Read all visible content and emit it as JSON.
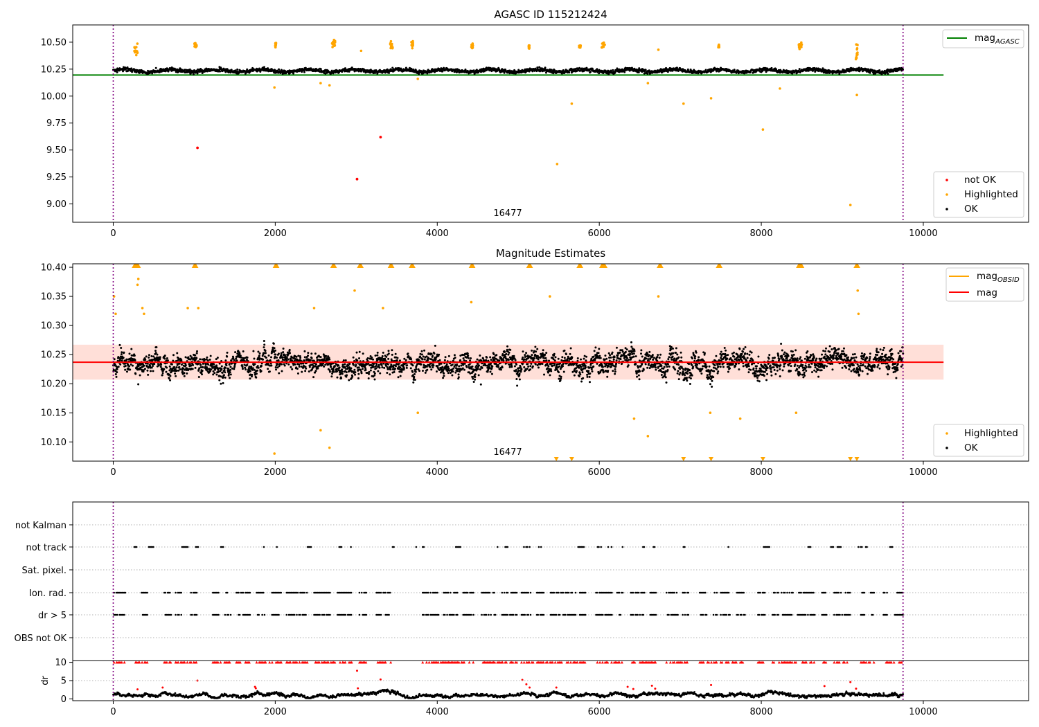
{
  "chart_data": [
    {
      "type": "scatter",
      "title": "AGASC ID 115212424",
      "xlabel": "",
      "ylabel": "",
      "xlim": [
        -500,
        11300
      ],
      "ylim": [
        8.83,
        10.66
      ],
      "xticks": [
        "0",
        "2000",
        "4000",
        "6000",
        "8000",
        "10000"
      ],
      "yticks": [
        "9.00",
        "9.25",
        "9.50",
        "9.75",
        "10.00",
        "10.25",
        "10.50"
      ],
      "vlines": [
        0,
        9750
      ],
      "annotation": {
        "text": "16477",
        "x": 4800,
        "y": 8.88
      },
      "ok_band": {
        "center": 10.235,
        "spread": 0.03
      },
      "reference_line": {
        "name": "mag_AGASC",
        "value": 10.195,
        "x_range": [
          -500,
          10250
        ],
        "color": "#008000"
      },
      "legend_lines": [
        {
          "name": "mag",
          "subscript": "AGASC",
          "color": "#008000"
        }
      ],
      "legend_markers": [
        {
          "name": "not OK",
          "color": "#ff0000"
        },
        {
          "name": "Highlighted",
          "color": "#ffa500"
        },
        {
          "name": "OK",
          "color": "#000000"
        }
      ],
      "highlighted_clusters": [
        {
          "x": [
            260,
            300
          ],
          "y": [
            10.38,
            10.49
          ]
        },
        {
          "x": [
            1000,
            1030
          ],
          "y": [
            10.45,
            10.5
          ]
        },
        {
          "x": [
            2000,
            2010
          ],
          "y": [
            10.45,
            10.5
          ]
        },
        {
          "x": [
            2700,
            2740
          ],
          "y": [
            10.44,
            10.53
          ]
        },
        {
          "x": [
            3420,
            3450
          ],
          "y": [
            10.44,
            10.51
          ]
        },
        {
          "x": [
            3680,
            3700
          ],
          "y": [
            10.44,
            10.51
          ]
        },
        {
          "x": [
            4420,
            4440
          ],
          "y": [
            10.44,
            10.49
          ]
        },
        {
          "x": [
            5130,
            5140
          ],
          "y": [
            10.44,
            10.47
          ]
        },
        {
          "x": [
            5750,
            5770
          ],
          "y": [
            10.45,
            10.47
          ]
        },
        {
          "x": [
            6030,
            6070
          ],
          "y": [
            10.44,
            10.5
          ]
        },
        {
          "x": [
            7470,
            7480
          ],
          "y": [
            10.45,
            10.48
          ]
        },
        {
          "x": [
            8460,
            8500
          ],
          "y": [
            10.43,
            10.5
          ]
        },
        {
          "x": [
            9160,
            9190
          ],
          "y": [
            10.33,
            10.49
          ]
        }
      ],
      "highlighted_points": [
        {
          "x": 1990,
          "y": 10.08
        },
        {
          "x": 2560,
          "y": 10.12
        },
        {
          "x": 2670,
          "y": 10.1
        },
        {
          "x": 3060,
          "y": 10.42
        },
        {
          "x": 3760,
          "y": 10.16
        },
        {
          "x": 5480,
          "y": 9.37
        },
        {
          "x": 5660,
          "y": 9.93
        },
        {
          "x": 6600,
          "y": 10.12
        },
        {
          "x": 6730,
          "y": 10.43
        },
        {
          "x": 7040,
          "y": 9.93
        },
        {
          "x": 7380,
          "y": 9.98
        },
        {
          "x": 8020,
          "y": 9.69
        },
        {
          "x": 8230,
          "y": 10.07
        },
        {
          "x": 9100,
          "y": 8.99
        },
        {
          "x": 9180,
          "y": 10.01
        }
      ],
      "not_ok_points": [
        {
          "x": 1040,
          "y": 9.52
        },
        {
          "x": 3300,
          "y": 9.62
        },
        {
          "x": 3010,
          "y": 9.23
        }
      ]
    },
    {
      "type": "scatter",
      "title": "Magnitude Estimates",
      "xlabel": "",
      "ylabel": "",
      "xlim": [
        -500,
        11300
      ],
      "ylim": [
        10.067,
        10.406
      ],
      "xticks": [
        "0",
        "2000",
        "4000",
        "6000",
        "8000",
        "10000"
      ],
      "yticks": [
        "10.10",
        "10.15",
        "10.20",
        "10.25",
        "10.30",
        "10.35",
        "10.40"
      ],
      "vlines": [
        0,
        9750
      ],
      "annotation": {
        "text": "16477",
        "x": 4800,
        "y": 10.077
      },
      "mag_line": {
        "name": "mag",
        "value": 10.237,
        "x_range": [
          -500,
          10250
        ],
        "color": "#ff0000"
      },
      "mag_band": {
        "low": 10.207,
        "high": 10.267,
        "color": "#ffc4b8"
      },
      "ok_band": {
        "center": 10.235,
        "spread": 0.028
      },
      "legend_lines": [
        {
          "name": "mag",
          "subscript": "OBSID",
          "color": "#ffa500"
        },
        {
          "name": "mag",
          "subscript": "",
          "color": "#ff0000"
        }
      ],
      "legend_markers": [
        {
          "name": "Highlighted",
          "color": "#ffa500"
        },
        {
          "name": "OK",
          "color": "#000000"
        }
      ],
      "clipped_top_x": [
        270,
        300,
        1010,
        2010,
        2720,
        3050,
        3430,
        3690,
        4430,
        5140,
        5760,
        6040,
        6060,
        6750,
        7480,
        8470,
        8490,
        9180
      ],
      "clipped_bottom_x": [
        5470,
        5660,
        7040,
        7380,
        8020,
        9100,
        9180
      ],
      "highlighted_points": [
        {
          "x": 10,
          "y": 10.35
        },
        {
          "x": 30,
          "y": 10.32
        },
        {
          "x": 300,
          "y": 10.37
        },
        {
          "x": 310,
          "y": 10.38
        },
        {
          "x": 360,
          "y": 10.33
        },
        {
          "x": 380,
          "y": 10.32
        },
        {
          "x": 920,
          "y": 10.33
        },
        {
          "x": 1050,
          "y": 10.33
        },
        {
          "x": 1990,
          "y": 10.08
        },
        {
          "x": 2480,
          "y": 10.33
        },
        {
          "x": 2560,
          "y": 10.12
        },
        {
          "x": 2670,
          "y": 10.09
        },
        {
          "x": 2980,
          "y": 10.36
        },
        {
          "x": 3330,
          "y": 10.33
        },
        {
          "x": 3760,
          "y": 10.15
        },
        {
          "x": 4420,
          "y": 10.34
        },
        {
          "x": 5390,
          "y": 10.35
        },
        {
          "x": 6430,
          "y": 10.14
        },
        {
          "x": 6600,
          "y": 10.11
        },
        {
          "x": 6730,
          "y": 10.35
        },
        {
          "x": 7370,
          "y": 10.15
        },
        {
          "x": 7740,
          "y": 10.14
        },
        {
          "x": 8430,
          "y": 10.15
        },
        {
          "x": 9190,
          "y": 10.36
        },
        {
          "x": 9200,
          "y": 10.32
        }
      ]
    },
    {
      "type": "scatter",
      "title": "",
      "xlabel": "",
      "ylabel": "",
      "xlim": [
        -500,
        11300
      ],
      "categories": [
        "OBS not OK",
        "dr > 5",
        "Ion. rad.",
        "Sat. pixel.",
        "not track",
        "not Kalman"
      ],
      "xticks": [],
      "vlines": [
        0,
        9750
      ],
      "flag_runs": {
        "not Kalman": [],
        "Sat. pixel.": [],
        "OBS not OK": [],
        "not track": [
          [
            260,
            300
          ],
          [
            440,
            500
          ],
          [
            850,
            920
          ],
          [
            1020,
            1050
          ],
          [
            1330,
            1360
          ],
          [
            1860,
            1880
          ],
          [
            2020,
            2040
          ],
          [
            2400,
            2450
          ],
          [
            2790,
            2820
          ],
          [
            2920,
            2940
          ],
          [
            3450,
            3480
          ],
          [
            3740,
            3760
          ],
          [
            3820,
            3850
          ],
          [
            4230,
            4290
          ],
          [
            4730,
            4750
          ],
          [
            4840,
            4870
          ],
          [
            5070,
            5150
          ],
          [
            5240,
            5290
          ],
          [
            5740,
            5810
          ],
          [
            5980,
            6040
          ],
          [
            6110,
            6160
          ],
          [
            6260,
            6290
          ],
          [
            6540,
            6560
          ],
          [
            6670,
            6690
          ],
          [
            7040,
            7070
          ],
          [
            7580,
            7600
          ],
          [
            8030,
            8100
          ],
          [
            8580,
            8620
          ],
          [
            8860,
            8890
          ],
          [
            8940,
            8990
          ],
          [
            9200,
            9250
          ],
          [
            9290,
            9310
          ],
          [
            9590,
            9630
          ]
        ],
        "Ion. rad.": [
          [
            10,
            150
          ],
          [
            350,
            420
          ],
          [
            630,
            720
          ],
          [
            770,
            850
          ],
          [
            960,
            1040
          ],
          [
            1230,
            1300
          ],
          [
            1380,
            1450
          ],
          [
            1520,
            1700
          ],
          [
            1770,
            1880
          ],
          [
            1960,
            2080
          ],
          [
            2140,
            2400
          ],
          [
            2480,
            2680
          ],
          [
            2770,
            2950
          ],
          [
            3040,
            3130
          ],
          [
            3250,
            3430
          ],
          [
            3820,
            4020
          ],
          [
            4080,
            4250
          ],
          [
            4320,
            4450
          ],
          [
            4550,
            4720
          ],
          [
            4800,
            4990
          ],
          [
            5040,
            5160
          ],
          [
            5230,
            5320
          ],
          [
            5400,
            5710
          ],
          [
            5760,
            5830
          ],
          [
            5960,
            6160
          ],
          [
            6220,
            6300
          ],
          [
            6390,
            6560
          ],
          [
            6630,
            6700
          ],
          [
            6830,
            6980
          ],
          [
            7030,
            7100
          ],
          [
            7240,
            7330
          ],
          [
            7410,
            7460
          ],
          [
            7500,
            7630
          ],
          [
            7700,
            7800
          ],
          [
            7960,
            8050
          ],
          [
            8140,
            8210
          ],
          [
            8250,
            8390
          ],
          [
            8450,
            8660
          ],
          [
            8750,
            8810
          ],
          [
            8900,
            9100
          ],
          [
            9230,
            9280
          ],
          [
            9350,
            9400
          ],
          [
            9510,
            9560
          ],
          [
            9650,
            9750
          ]
        ],
        "dr > 5": [
          [
            10,
            150
          ],
          [
            350,
            420
          ],
          [
            630,
            720
          ],
          [
            770,
            850
          ],
          [
            960,
            1040
          ],
          [
            1230,
            1300
          ],
          [
            1380,
            1450
          ],
          [
            1520,
            1700
          ],
          [
            1770,
            1880
          ],
          [
            1960,
            2080
          ],
          [
            2140,
            2400
          ],
          [
            2480,
            2680
          ],
          [
            2770,
            2950
          ],
          [
            3040,
            3130
          ],
          [
            3250,
            3430
          ],
          [
            3820,
            4020
          ],
          [
            4080,
            4250
          ],
          [
            4320,
            4450
          ],
          [
            4550,
            4720
          ],
          [
            4800,
            4990
          ],
          [
            5040,
            5160
          ],
          [
            5230,
            5320
          ],
          [
            5400,
            5710
          ],
          [
            5760,
            5830
          ],
          [
            5960,
            6160
          ],
          [
            6220,
            6300
          ],
          [
            6390,
            6560
          ],
          [
            6630,
            6700
          ],
          [
            6830,
            6980
          ],
          [
            7030,
            7100
          ],
          [
            7240,
            7330
          ],
          [
            7410,
            7460
          ],
          [
            7500,
            7630
          ],
          [
            7700,
            7800
          ],
          [
            7960,
            8050
          ],
          [
            8140,
            8210
          ],
          [
            8250,
            8390
          ],
          [
            8450,
            8660
          ],
          [
            8750,
            8810
          ],
          [
            8900,
            9100
          ],
          [
            9230,
            9280
          ],
          [
            9350,
            9400
          ],
          [
            9510,
            9560
          ],
          [
            9650,
            9750
          ]
        ]
      }
    },
    {
      "type": "scatter",
      "title": "",
      "xlabel": "",
      "ylabel": "dr",
      "xlim": [
        -500,
        11300
      ],
      "ylim": [
        -0.5,
        10.5
      ],
      "xticks": [
        "0",
        "2000",
        "4000",
        "6000",
        "8000",
        "10000"
      ],
      "yticks": [
        "0",
        "5",
        "10"
      ],
      "vlines": [
        0,
        9750
      ],
      "clip_value": 10,
      "clipped_runs": [
        [
          10,
          150
        ],
        [
          260,
          420
        ],
        [
          630,
          720
        ],
        [
          770,
          1040
        ],
        [
          1230,
          1450
        ],
        [
          1520,
          1700
        ],
        [
          1770,
          2080
        ],
        [
          2140,
          2400
        ],
        [
          2480,
          2950
        ],
        [
          3040,
          3130
        ],
        [
          3250,
          3430
        ],
        [
          3820,
          4450
        ],
        [
          4550,
          4990
        ],
        [
          5040,
          5830
        ],
        [
          5960,
          6300
        ],
        [
          6390,
          6700
        ],
        [
          6830,
          7100
        ],
        [
          7240,
          7460
        ],
        [
          7500,
          7800
        ],
        [
          7960,
          8050
        ],
        [
          8140,
          8660
        ],
        [
          8750,
          8810
        ],
        [
          8900,
          9100
        ],
        [
          9230,
          9400
        ],
        [
          9510,
          9750
        ]
      ],
      "red_points": [
        {
          "x": 300,
          "y": 2.6
        },
        {
          "x": 610,
          "y": 3.1
        },
        {
          "x": 1040,
          "y": 5.0
        },
        {
          "x": 1750,
          "y": 3.3
        },
        {
          "x": 1760,
          "y": 2.9
        },
        {
          "x": 3010,
          "y": 7.7
        },
        {
          "x": 3020,
          "y": 2.9
        },
        {
          "x": 3300,
          "y": 5.3
        },
        {
          "x": 5050,
          "y": 5.2
        },
        {
          "x": 5100,
          "y": 4.0
        },
        {
          "x": 5140,
          "y": 3.1
        },
        {
          "x": 5470,
          "y": 3.1
        },
        {
          "x": 6350,
          "y": 3.3
        },
        {
          "x": 6420,
          "y": 2.7
        },
        {
          "x": 6650,
          "y": 3.6
        },
        {
          "x": 6690,
          "y": 2.8
        },
        {
          "x": 7380,
          "y": 3.8
        },
        {
          "x": 8780,
          "y": 3.5
        },
        {
          "x": 9100,
          "y": 4.6
        },
        {
          "x": 9170,
          "y": 2.8
        }
      ]
    }
  ]
}
